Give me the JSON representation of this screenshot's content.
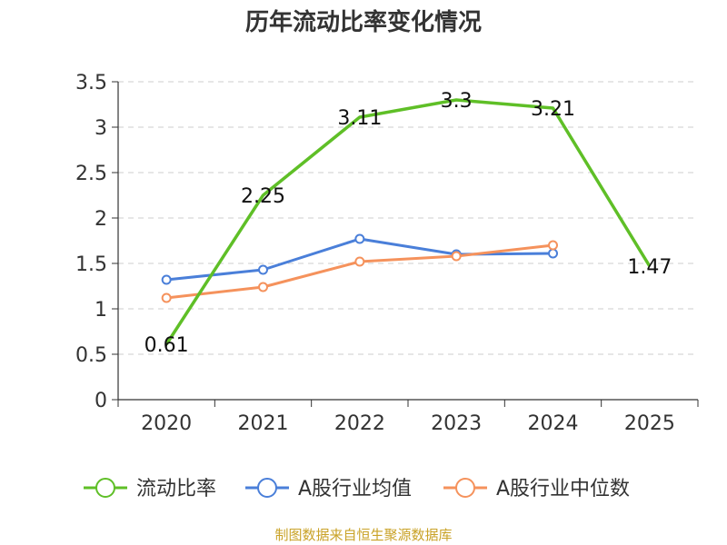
{
  "chart_data": {
    "type": "line",
    "title": "历年流动比率变化情况",
    "categories": [
      "2020",
      "2021",
      "2022",
      "2023",
      "2024",
      "2025"
    ],
    "ylim": [
      0,
      3.5
    ],
    "yticks": [
      "0",
      "0.5",
      "1",
      "1.5",
      "2",
      "2.5",
      "3",
      "3.5"
    ],
    "grid": true,
    "legend_position": "bottom",
    "series": [
      {
        "name": "流动比率",
        "color": "#5fbf27",
        "values": [
          0.61,
          2.25,
          3.11,
          3.3,
          3.21,
          1.47
        ],
        "labels": [
          "0.61",
          "2.25",
          "3.11",
          "3.3",
          "3.21",
          "1.47"
        ],
        "show_markers": false,
        "show_labels": true
      },
      {
        "name": "A股行业均值",
        "color": "#4a7fd9",
        "values": [
          1.32,
          1.43,
          1.77,
          1.6,
          1.61,
          null
        ],
        "show_markers": true,
        "show_labels": false
      },
      {
        "name": "A股行业中位数",
        "color": "#f5925c",
        "values": [
          1.12,
          1.24,
          1.52,
          1.58,
          1.7,
          null
        ],
        "show_markers": true,
        "show_labels": false
      }
    ]
  },
  "footer": "制图数据来自恒生聚源数据库"
}
